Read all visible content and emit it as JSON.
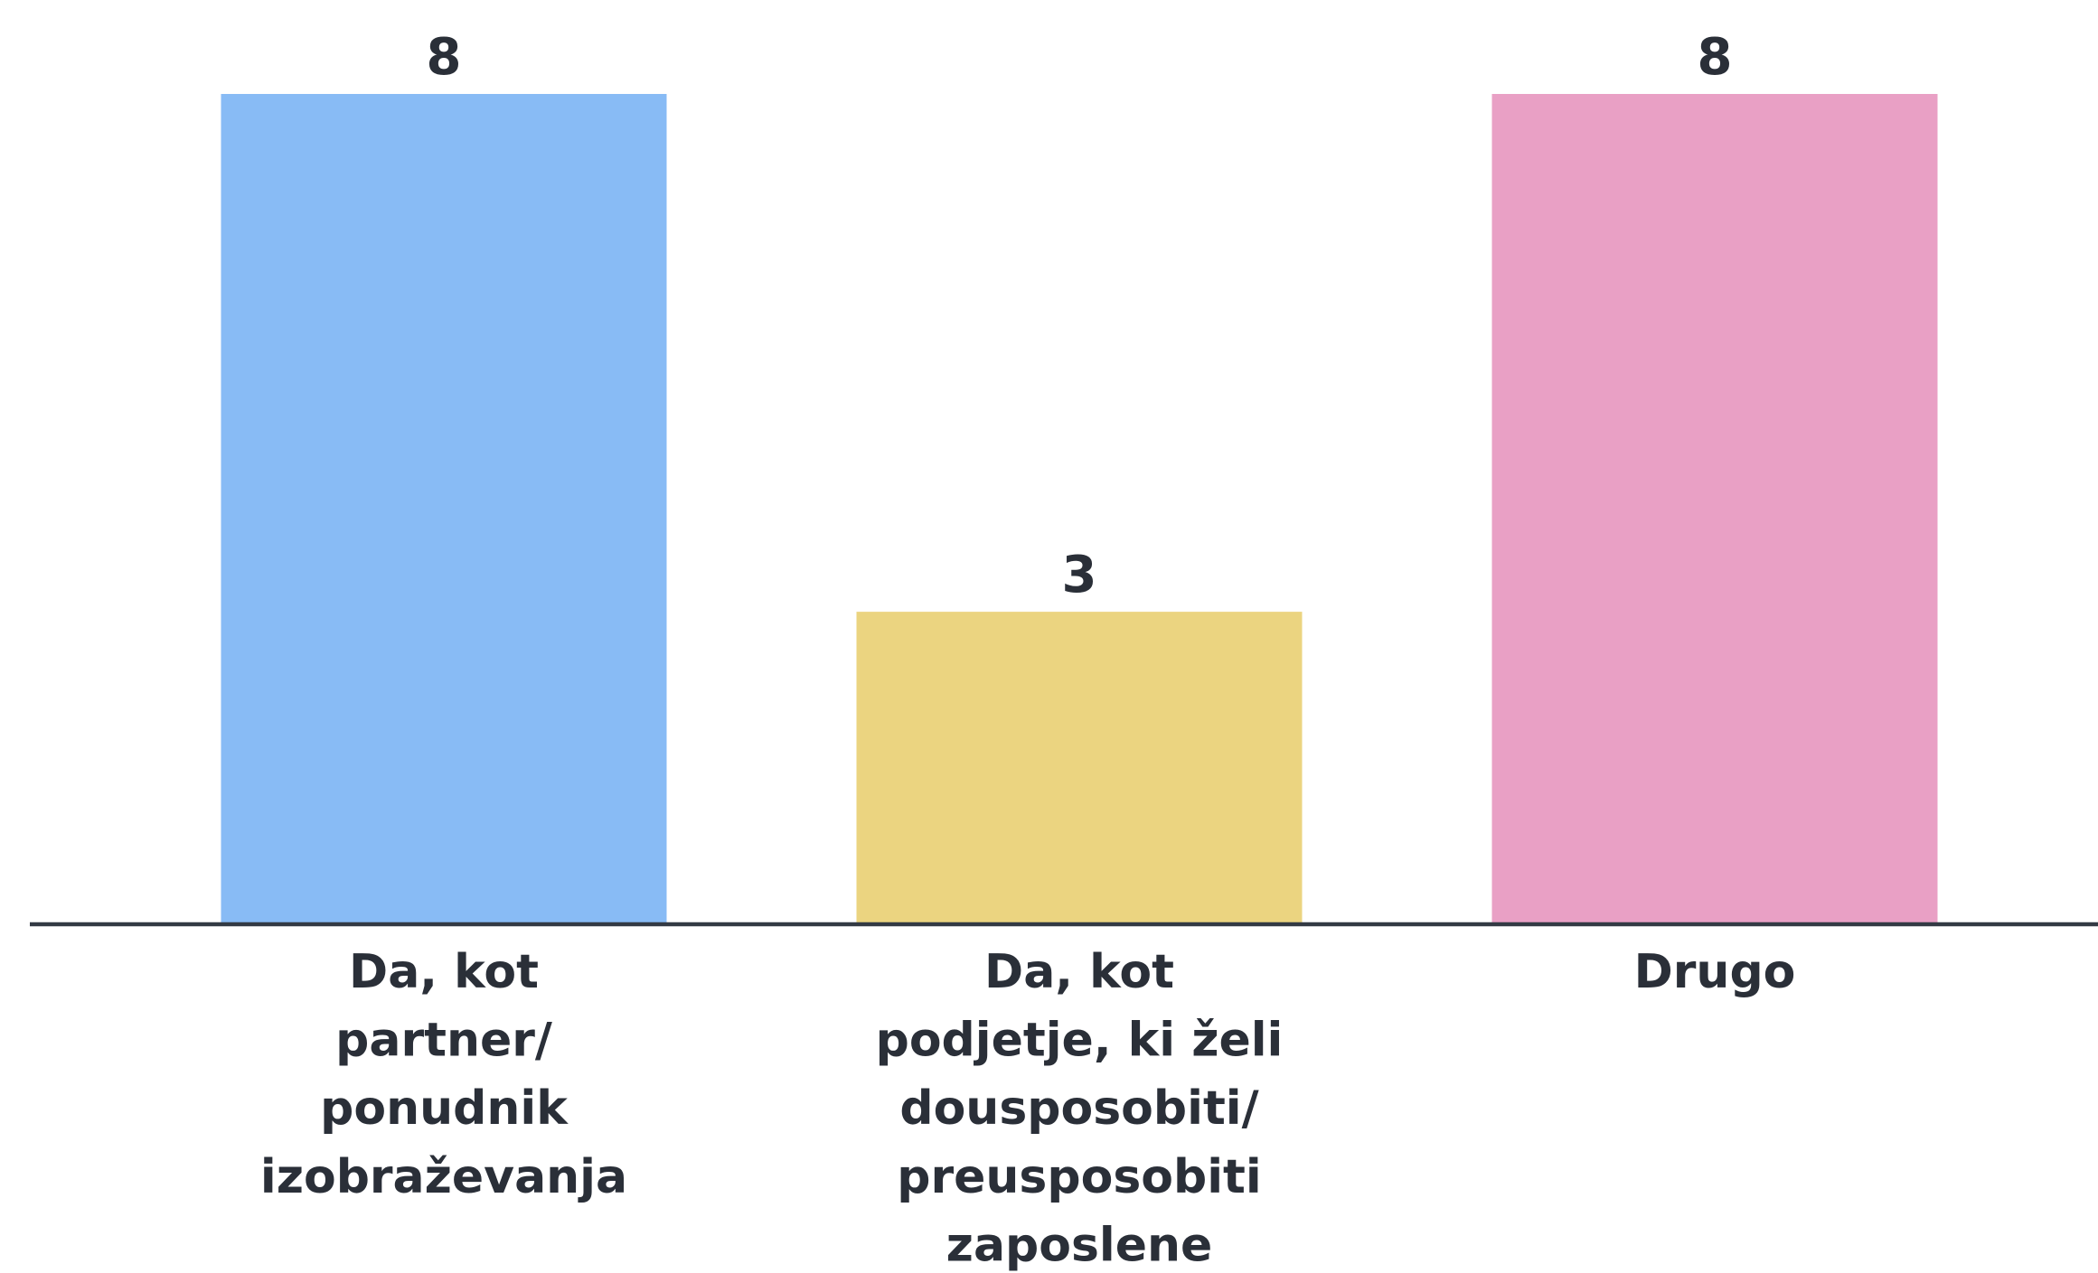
{
  "chart_data": {
    "type": "bar",
    "categories": [
      "Da, kot\npartner/\nponudnik\nizobraževanja",
      "Da, kot\npodjetje, ki želi\ndousposobiti/\npreusposobiti\nzaposlene",
      "Drugo"
    ],
    "values": [
      8,
      3,
      8
    ],
    "colors": [
      "#88bbf5",
      "#ebd480",
      "#e9a0c5"
    ],
    "ylim": [
      0,
      8
    ]
  }
}
